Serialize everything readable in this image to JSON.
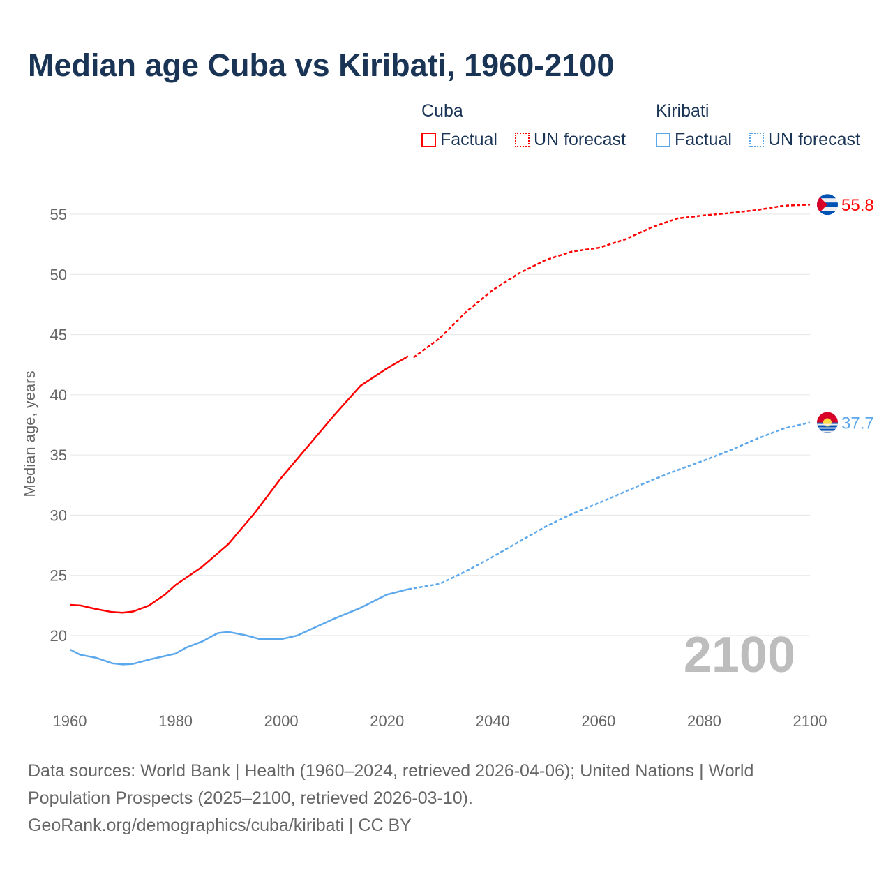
{
  "title": "Median age Cuba vs Kiribati, 1960-2100",
  "legend": {
    "groups": [
      {
        "country": "Cuba",
        "color": "#ff0000",
        "factual": "Factual",
        "forecast": "UN forecast"
      },
      {
        "country": "Kiribati",
        "color": "#5ca8ec",
        "factual": "Factual",
        "forecast": "UN forecast"
      }
    ]
  },
  "year_watermark": "2100",
  "footer": {
    "line1": "Data sources: World Bank | Health (1960–2024, retrieved 2026-04-06); United Nations | World Population Prospects (2025–2100, retrieved 2026-03-10).",
    "line2": "GeoRank.org/demographics/cuba/kiribati | CC BY"
  },
  "chart_data": {
    "type": "line",
    "title": "Median age Cuba vs Kiribati, 1960-2100",
    "xlabel": "",
    "ylabel": "Median age, years",
    "xlim": [
      1960,
      2100
    ],
    "ylim": [
      14.5,
      57.5
    ],
    "xticks": [
      1960,
      1980,
      2000,
      2020,
      2040,
      2060,
      2080,
      2100
    ],
    "yticks": [
      20,
      25,
      30,
      35,
      40,
      45,
      50,
      55
    ],
    "grid": true,
    "legend_position": "top-right",
    "series": [
      {
        "name": "Cuba",
        "color": "#ff0000",
        "end_label": "55.8",
        "factual": {
          "x": [
            1960,
            1962,
            1965,
            1968,
            1970,
            1972,
            1975,
            1978,
            1980,
            1985,
            1990,
            1995,
            2000,
            2005,
            2010,
            2015,
            2020,
            2024
          ],
          "y": [
            22.55,
            22.5,
            22.2,
            21.95,
            21.9,
            22.0,
            22.5,
            23.4,
            24.2,
            25.7,
            27.6,
            30.2,
            33.1,
            35.7,
            38.3,
            40.75,
            42.2,
            43.2
          ]
        },
        "forecast": {
          "x": [
            2025,
            2030,
            2035,
            2040,
            2045,
            2050,
            2055,
            2060,
            2065,
            2070,
            2075,
            2080,
            2085,
            2090,
            2095,
            2100
          ],
          "y": [
            43.1,
            44.7,
            46.9,
            48.7,
            50.1,
            51.2,
            51.9,
            52.2,
            52.9,
            53.9,
            54.65,
            54.9,
            55.1,
            55.35,
            55.7,
            55.8
          ]
        }
      },
      {
        "name": "Kiribati",
        "color": "#5ca8ec",
        "end_label": "37.7",
        "factual": {
          "x": [
            1960,
            1962,
            1965,
            1968,
            1970,
            1972,
            1975,
            1980,
            1982,
            1985,
            1988,
            1990,
            1993,
            1996,
            2000,
            2003,
            2005,
            2010,
            2015,
            2020,
            2024
          ],
          "y": [
            18.85,
            18.4,
            18.15,
            17.7,
            17.6,
            17.65,
            18.0,
            18.5,
            19.0,
            19.5,
            20.2,
            20.3,
            20.05,
            19.7,
            19.7,
            20.0,
            20.4,
            21.4,
            22.3,
            23.4,
            23.85
          ]
        },
        "forecast": {
          "x": [
            2024,
            2030,
            2035,
            2040,
            2045,
            2050,
            2055,
            2060,
            2065,
            2070,
            2075,
            2080,
            2085,
            2090,
            2095,
            2100
          ],
          "y": [
            23.85,
            24.3,
            25.35,
            26.55,
            27.8,
            29.05,
            30.1,
            31.0,
            31.95,
            32.9,
            33.75,
            34.55,
            35.4,
            36.35,
            37.2,
            37.7
          ]
        }
      }
    ]
  }
}
